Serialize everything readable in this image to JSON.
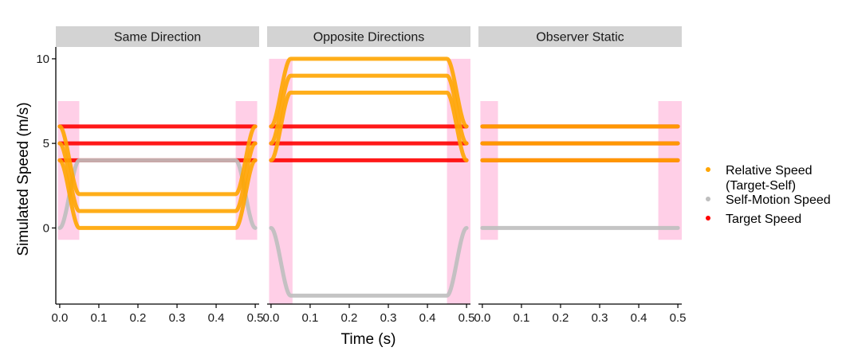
{
  "chart_data": {
    "type": "line",
    "xlabel": "Time (s)",
    "ylabel": "Simulated Speed (m/s)",
    "xlim": [
      -0.01,
      0.51
    ],
    "ylim": [
      -4.5,
      10.7
    ],
    "x_ticks": [
      0.0,
      0.1,
      0.2,
      0.3,
      0.4,
      0.5
    ],
    "x_tick_labels": [
      "0.0",
      "0.1",
      "0.2",
      "0.3",
      "0.4",
      "0.5"
    ],
    "y_ticks": [
      0,
      5,
      10
    ],
    "y_tick_labels": [
      "0",
      "5",
      "10"
    ],
    "grid": false,
    "legend_placement": "right",
    "legend": [
      {
        "label_lines": [
          "Relative Speed",
          "(Target-Self)"
        ],
        "color": "#ffa500"
      },
      {
        "label_lines": [
          "Self-Motion Speed"
        ],
        "color": "#bebebe"
      },
      {
        "label_lines": [
          "Target Speed"
        ],
        "color": "#ff0000"
      }
    ],
    "colors": {
      "relative": "#ffa500",
      "self": "#bebebe",
      "target": "#ff0000",
      "shade": "#ff69b4",
      "strip": "#d3d3d3"
    },
    "panels": [
      {
        "title": "Same Direction",
        "shaded_intervals": [
          [
            -0.005,
            0.05
          ],
          [
            0.45,
            0.505
          ]
        ],
        "shaded_y_range": [
          -0.7,
          7.5
        ],
        "target_speeds": [
          4,
          5,
          6
        ],
        "self_motion": {
          "start": 0,
          "plateau": 4,
          "end": 0
        },
        "relative_speeds": [
          {
            "start": 4,
            "plateau": 0,
            "end": 4
          },
          {
            "start": 5,
            "plateau": 1,
            "end": 5
          },
          {
            "start": 6,
            "plateau": 2,
            "end": 6
          }
        ]
      },
      {
        "title": "Opposite Directions",
        "shaded_intervals": [
          [
            -0.005,
            0.055
          ],
          [
            0.45,
            0.51
          ]
        ],
        "shaded_y_range": [
          -4.5,
          10.0
        ],
        "target_speeds": [
          4,
          5,
          6
        ],
        "self_motion": {
          "start": 0,
          "plateau": -4,
          "end": 0
        },
        "relative_speeds": [
          {
            "start": 4,
            "plateau": 8,
            "end": 4
          },
          {
            "start": 5,
            "plateau": 9,
            "end": 5
          },
          {
            "start": 6,
            "plateau": 10,
            "end": 6
          }
        ]
      },
      {
        "title": "Observer Static",
        "shaded_intervals": [
          [
            -0.005,
            0.04
          ],
          [
            0.45,
            0.51
          ]
        ],
        "shaded_y_range": [
          -0.7,
          7.5
        ],
        "target_speeds": [
          4,
          5,
          6
        ],
        "self_motion": {
          "start": 0,
          "plateau": 0,
          "end": 0
        },
        "relative_speeds": [
          {
            "start": 4,
            "plateau": 4,
            "end": 4
          },
          {
            "start": 5,
            "plateau": 5,
            "end": 5
          },
          {
            "start": 6,
            "plateau": 6,
            "end": 6
          }
        ]
      }
    ],
    "ramp_window": [
      0.0,
      0.05,
      0.45,
      0.5
    ]
  }
}
